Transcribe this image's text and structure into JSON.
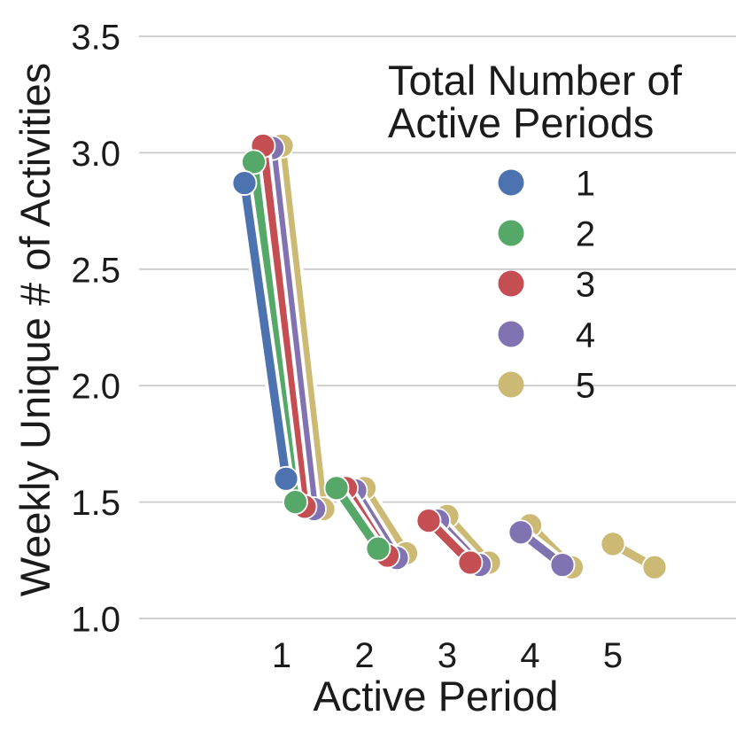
{
  "chart_data": {
    "type": "line",
    "title": "",
    "xlabel": "Active Period",
    "ylabel": "Weekly Unique # of Activities",
    "x_tick_values": [
      1,
      2,
      3,
      4,
      5
    ],
    "x_tick_labels": [
      "1",
      "2",
      "3",
      "4",
      "5"
    ],
    "y_tick_values": [
      1.0,
      1.5,
      2.0,
      2.5,
      3.0,
      3.5
    ],
    "y_tick_labels": [
      "1.0",
      "1.5",
      "2.0",
      "2.5",
      "3.0",
      "3.5"
    ],
    "ylim": [
      1.0,
      3.5
    ],
    "grid": true,
    "legend": {
      "title_line1": "Total Number of",
      "title_line2": "Active Periods",
      "position": "upper right",
      "entries": [
        "1",
        "2",
        "3",
        "4",
        "5"
      ]
    },
    "series": [
      {
        "name": "1",
        "color": "#4C72B0",
        "segments": [
          {
            "period": 1,
            "start": 2.87,
            "end": 1.6
          }
        ]
      },
      {
        "name": "2",
        "color": "#55A868",
        "segments": [
          {
            "period": 1,
            "start": 2.96,
            "end": 1.5
          },
          {
            "period": 2,
            "start": 1.56,
            "end": 1.3
          }
        ]
      },
      {
        "name": "3",
        "color": "#C44E52",
        "segments": [
          {
            "period": 1,
            "start": 3.03,
            "end": 1.48
          },
          {
            "period": 2,
            "start": 1.56,
            "end": 1.27
          },
          {
            "period": 3,
            "start": 1.42,
            "end": 1.24
          }
        ]
      },
      {
        "name": "4",
        "color": "#8172B2",
        "segments": [
          {
            "period": 1,
            "start": 3.02,
            "end": 1.47
          },
          {
            "period": 2,
            "start": 1.55,
            "end": 1.26
          },
          {
            "period": 3,
            "start": 1.42,
            "end": 1.23
          },
          {
            "period": 4,
            "start": 1.37,
            "end": 1.23
          }
        ]
      },
      {
        "name": "5",
        "color": "#CCB974",
        "segments": [
          {
            "period": 1,
            "start": 3.03,
            "end": 1.47
          },
          {
            "period": 2,
            "start": 1.56,
            "end": 1.28
          },
          {
            "period": 3,
            "start": 1.44,
            "end": 1.24
          },
          {
            "period": 4,
            "start": 1.4,
            "end": 1.22
          },
          {
            "period": 5,
            "start": 1.32,
            "end": 1.22
          }
        ]
      }
    ],
    "colors": {
      "grid": "#cacaca",
      "text": "#1b1b1b",
      "background": "#ffffff"
    }
  }
}
